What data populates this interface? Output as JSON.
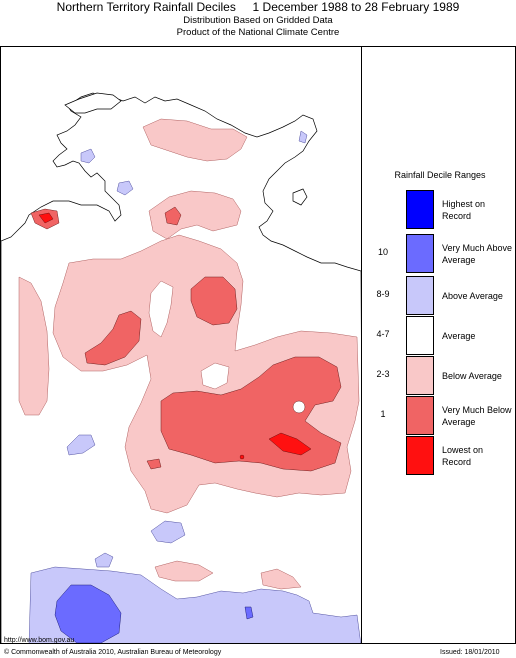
{
  "header": {
    "title": "Northern Territory Rainfall Deciles     1 December 1988 to 28 February 1989",
    "subtitle_1": "Distribution Based on Gridded Data",
    "subtitle_2": "Product of the National Climate Centre"
  },
  "legend": {
    "title": "Rainfall Decile Ranges",
    "items": [
      {
        "range": "",
        "label": "Highest on Record",
        "color": "#0000ff"
      },
      {
        "range": "10",
        "label": "Very Much Above Average",
        "color": "#6b6bff"
      },
      {
        "range": "8-9",
        "label": "Above Average",
        "color": "#c8c8fa"
      },
      {
        "range": "4-7",
        "label": "Average",
        "color": "#ffffff"
      },
      {
        "range": "2-3",
        "label": "Below Average",
        "color": "#f9c8c8"
      },
      {
        "range": "1",
        "label": "Very Much Below Average",
        "color": "#f06464"
      },
      {
        "range": "",
        "label": "Lowest on Record",
        "color": "#ff1010"
      }
    ]
  },
  "footer": {
    "url": "http://www.bom.gov.au",
    "copyright": "© Commonwealth of Australia 2010, Australian Bureau of Meteorology",
    "issued": "Issued: 18/01/2010"
  },
  "colors": {
    "below_average": "#f9c8c8",
    "very_much_below": "#f06464",
    "lowest": "#ff1010",
    "above_average": "#c8c8fa",
    "very_much_above": "#6b6bff",
    "highest": "#0000ff"
  }
}
